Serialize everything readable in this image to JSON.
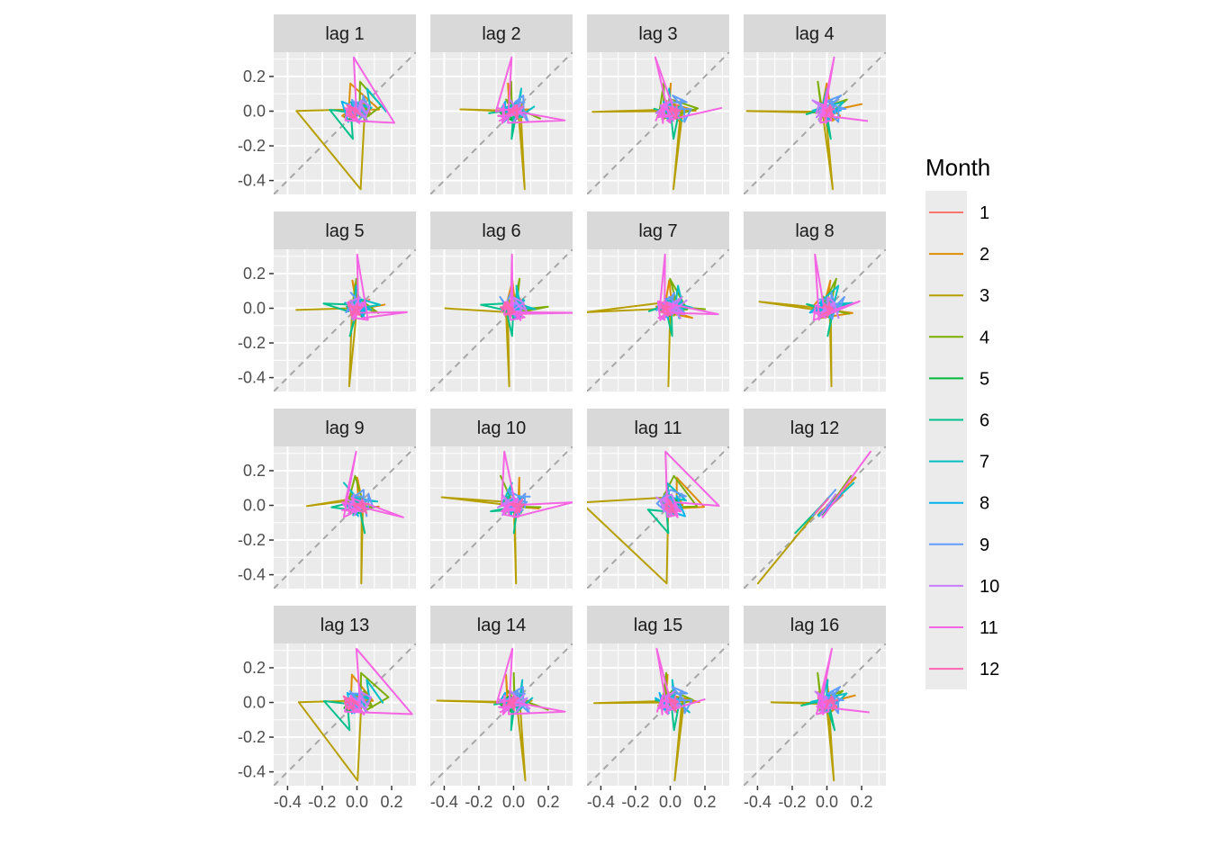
{
  "chart_data": {
    "type": "line",
    "layout": "facet-grid-4x4",
    "panels": [
      "lag 1",
      "lag 2",
      "lag 3",
      "lag 4",
      "lag 5",
      "lag 6",
      "lag 7",
      "lag 8",
      "lag 9",
      "lag 10",
      "lag 11",
      "lag 12",
      "lag 13",
      "lag 14",
      "lag 15",
      "lag 16"
    ],
    "x_ticks": [
      "-0.4",
      "-0.2",
      "0.0",
      "0.2"
    ],
    "y_ticks": [
      "0.2",
      "0.0",
      "-0.2",
      "-0.4"
    ],
    "xlim": [
      -0.48,
      0.34
    ],
    "ylim": [
      -0.48,
      0.34
    ],
    "reference_line": "y = x (dashed)",
    "legend": {
      "title": "Month",
      "placement": "right",
      "entries": [
        "1",
        "2",
        "3",
        "4",
        "5",
        "6",
        "7",
        "8",
        "9",
        "10",
        "11",
        "12"
      ],
      "colors": [
        "#F8766D",
        "#DE8C00",
        "#B79F00",
        "#7CAE00",
        "#00BA38",
        "#00C08B",
        "#00BFC4",
        "#00B4F0",
        "#619CFF",
        "#C77CFF",
        "#F564E3",
        "#FF64B0"
      ]
    },
    "grid": true,
    "panel_background": "#EBEBEB",
    "strip_background": "#D9D9D9"
  }
}
